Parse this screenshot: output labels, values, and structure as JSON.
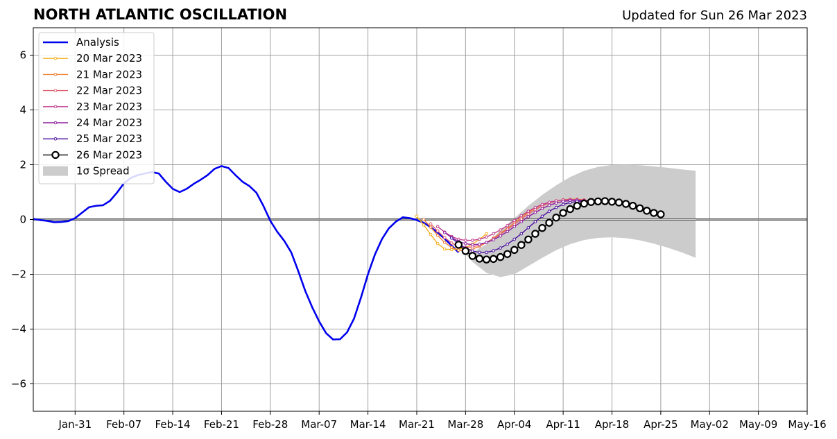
{
  "header": {
    "title": "NORTH ATLANTIC OSCILLATION",
    "updated": "Updated for Sun 26 Mar 2023"
  },
  "colors": {
    "analysis": "#0000ee",
    "spread": "#cccccc",
    "grid": "#a0a0a0",
    "zero_line": "#555555"
  },
  "chart_data": {
    "type": "line",
    "title": "NORTH ATLANTIC OSCILLATION",
    "subtitle": "Updated for Sun 26 Mar 2023",
    "xlabel": "",
    "ylabel": "",
    "xlim": [
      "2023-01-25",
      "2023-05-16"
    ],
    "ylim": [
      -7,
      7
    ],
    "grid": true,
    "legend_position": "top-left",
    "x_ticks": [
      "Jan-31",
      "Feb-07",
      "Feb-14",
      "Feb-21",
      "Feb-28",
      "Mar-07",
      "Mar-14",
      "Mar-21",
      "Mar-28",
      "Apr-04",
      "Apr-11",
      "Apr-18",
      "Apr-25",
      "May-02",
      "May-09",
      "May-16"
    ],
    "y_ticks": [
      "6",
      "4",
      "2",
      "0",
      "−2",
      "−4",
      "−6"
    ],
    "series": [
      {
        "name": "Analysis",
        "color": "#0000ee",
        "start_date": "2023-01-25",
        "values": [
          0.02,
          -0.02,
          -0.05,
          -0.1,
          -0.09,
          -0.06,
          0.05,
          0.25,
          0.45,
          0.5,
          0.52,
          0.68,
          0.98,
          1.32,
          1.52,
          1.62,
          1.68,
          1.73,
          1.68,
          1.38,
          1.12,
          1.0,
          1.12,
          1.3,
          1.45,
          1.62,
          1.85,
          1.95,
          1.88,
          1.62,
          1.38,
          1.22,
          0.98,
          0.5,
          -0.05,
          -0.45,
          -0.78,
          -1.2,
          -1.88,
          -2.6,
          -3.2,
          -3.72,
          -4.15,
          -4.38,
          -4.37,
          -4.12,
          -3.62,
          -2.85,
          -2.0,
          -1.28,
          -0.72,
          -0.32,
          -0.08,
          0.08,
          0.05,
          -0.02,
          -0.12,
          -0.28,
          -0.48,
          -0.7,
          -0.95,
          -1.2
        ]
      },
      {
        "name": "20 Mar 2023",
        "color": "#f5b020",
        "start_date": "2023-03-21",
        "values": [
          0.12,
          -0.2,
          -0.55,
          -0.88,
          -1.08,
          -1.1,
          -1.08,
          -1.02,
          -0.9,
          -0.72,
          -0.52
        ]
      },
      {
        "name": "21 Mar 2023",
        "color": "#ef8030",
        "start_date": "2023-03-22",
        "values": [
          0.0,
          -0.28,
          -0.58,
          -0.84,
          -1.02,
          -1.12,
          -1.12,
          -1.08,
          -0.98,
          -0.84,
          -0.68,
          -0.5,
          -0.32,
          -0.12,
          0.08,
          0.26,
          0.42,
          0.54,
          0.62,
          0.68,
          0.72,
          0.74,
          0.74,
          0.72,
          0.68,
          0.64,
          0.58
        ]
      },
      {
        "name": "22 Mar 2023",
        "color": "#e06070",
        "start_date": "2023-03-23",
        "values": [
          -0.16,
          -0.42,
          -0.66,
          -0.86,
          -0.98,
          -1.02,
          -1.0,
          -0.94,
          -0.84,
          -0.7,
          -0.54,
          -0.36,
          -0.18,
          0.02,
          0.2,
          0.36,
          0.5,
          0.6,
          0.67,
          0.71,
          0.73,
          0.73,
          0.71,
          0.68,
          0.64,
          0.58
        ]
      },
      {
        "name": "23 Mar 2023",
        "color": "#c03d8f",
        "start_date": "2023-03-24",
        "values": [
          -0.26,
          -0.46,
          -0.62,
          -0.72,
          -0.76,
          -0.76,
          -0.72,
          -0.64,
          -0.52,
          -0.38,
          -0.22,
          -0.04,
          0.14,
          0.3,
          0.44,
          0.55,
          0.63,
          0.68,
          0.71,
          0.72,
          0.71,
          0.69,
          0.65
        ]
      },
      {
        "name": "24 Mar 2023",
        "color": "#8e1e9e",
        "start_date": "2023-03-25",
        "values": [
          -0.48,
          -0.66,
          -0.8,
          -0.88,
          -0.92,
          -0.9,
          -0.84,
          -0.74,
          -0.6,
          -0.44,
          -0.26,
          -0.08,
          0.1,
          0.26,
          0.4,
          0.52,
          0.6,
          0.66,
          0.69,
          0.7,
          0.69,
          0.66
        ]
      },
      {
        "name": "25 Mar 2023",
        "color": "#4a10a0",
        "start_date": "2023-03-26",
        "values": [
          -0.68,
          -0.88,
          -1.05,
          -1.15,
          -1.2,
          -1.2,
          -1.14,
          -1.04,
          -0.9,
          -0.72,
          -0.52,
          -0.3,
          -0.08,
          0.12,
          0.3,
          0.44,
          0.55,
          0.62,
          0.66,
          0.68,
          0.68,
          0.66
        ]
      },
      {
        "name": "26 Mar 2023",
        "color": "#000000",
        "start_date": "2023-03-27",
        "values": [
          -0.92,
          -1.15,
          -1.33,
          -1.43,
          -1.46,
          -1.44,
          -1.37,
          -1.26,
          -1.11,
          -0.93,
          -0.73,
          -0.52,
          -0.31,
          -0.12,
          0.07,
          0.24,
          0.38,
          0.5,
          0.58,
          0.64,
          0.66,
          0.67,
          0.65,
          0.62,
          0.57,
          0.5,
          0.41,
          0.32,
          0.24,
          0.19
        ]
      }
    ],
    "spread": {
      "name": "1σ Spread",
      "color": "#cccccc",
      "dates": [
        "2023-03-27",
        "2023-03-29",
        "2023-03-31",
        "2023-04-02",
        "2023-04-04",
        "2023-04-06",
        "2023-04-08",
        "2023-04-10",
        "2023-04-12",
        "2023-04-14",
        "2023-04-16",
        "2023-04-18",
        "2023-04-20",
        "2023-04-22",
        "2023-04-24",
        "2023-04-26",
        "2023-04-28",
        "2023-04-30"
      ],
      "upper": [
        -0.9,
        -1.2,
        -0.9,
        -0.4,
        0.05,
        0.5,
        0.9,
        1.25,
        1.55,
        1.78,
        1.92,
        1.99,
        2.0,
        1.98,
        1.94,
        1.89,
        1.83,
        1.78
      ],
      "lower": [
        -0.95,
        -1.55,
        -1.95,
        -2.1,
        -2.0,
        -1.7,
        -1.4,
        -1.12,
        -0.9,
        -0.75,
        -0.67,
        -0.65,
        -0.68,
        -0.76,
        -0.88,
        -1.03,
        -1.2,
        -1.4
      ]
    }
  }
}
